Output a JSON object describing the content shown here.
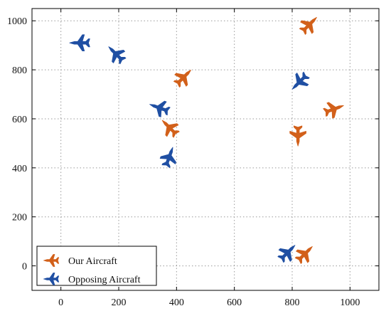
{
  "chart_data": {
    "type": "scatter",
    "title": "",
    "xlabel": "",
    "ylabel": "",
    "xlim": [
      -100,
      1100
    ],
    "ylim": [
      -100,
      1050
    ],
    "x_ticks": [
      "0",
      "200",
      "400",
      "600",
      "800",
      "1000"
    ],
    "y_ticks": [
      "0",
      "200",
      "400",
      "600",
      "800",
      "1000"
    ],
    "grid": true,
    "legend_position": "bottom-left",
    "series": [
      {
        "name": "Our Aircraft",
        "color": "#d2601a",
        "marker": "fighter-jet-icon",
        "points": [
          {
            "x": 860,
            "y": 985,
            "heading": 45
          },
          {
            "x": 425,
            "y": 770,
            "heading": 45
          },
          {
            "x": 945,
            "y": 640,
            "heading": 70
          },
          {
            "x": 375,
            "y": 565,
            "heading": 315
          },
          {
            "x": 820,
            "y": 530,
            "heading": 180
          },
          {
            "x": 845,
            "y": 50,
            "heading": 45
          }
        ]
      },
      {
        "name": "Opposing Aircraft",
        "color": "#1f4fa3",
        "marker": "fighter-jet-icon",
        "points": [
          {
            "x": 65,
            "y": 910,
            "heading": 270
          },
          {
            "x": 190,
            "y": 865,
            "heading": 315
          },
          {
            "x": 825,
            "y": 750,
            "heading": 225
          },
          {
            "x": 340,
            "y": 645,
            "heading": 290
          },
          {
            "x": 375,
            "y": 445,
            "heading": 20
          },
          {
            "x": 785,
            "y": 55,
            "heading": 45
          }
        ]
      }
    ]
  }
}
